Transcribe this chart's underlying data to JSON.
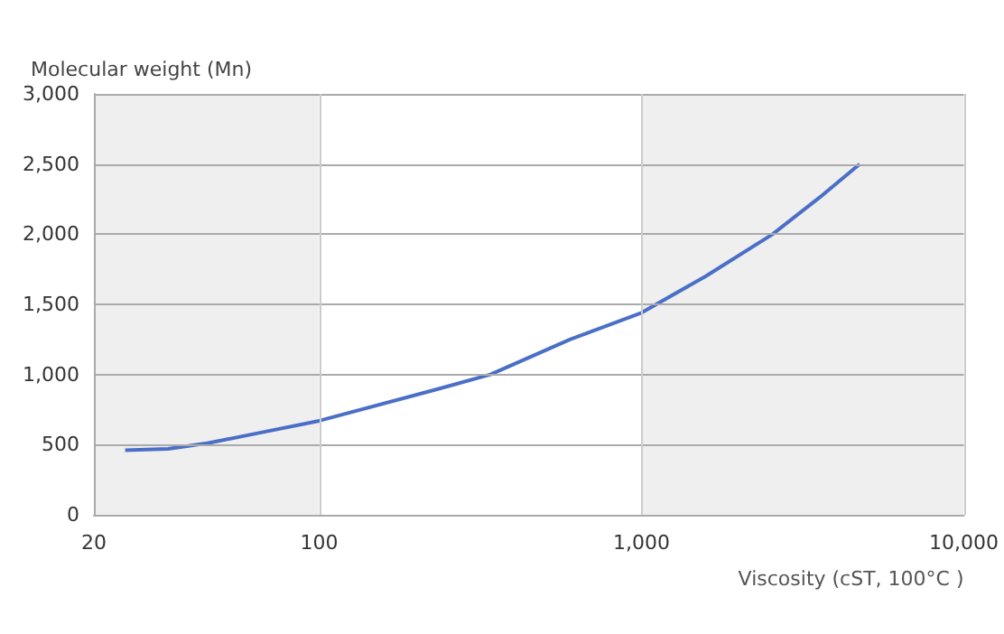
{
  "chart_data": {
    "type": "line",
    "xlabel": "Viscosity (cST, 100°C )",
    "ylabel": "Molecular weight (Mn)",
    "x": [
      25,
      34,
      45,
      64,
      100,
      220,
      340,
      600,
      1000,
      1580,
      2550,
      3560,
      4750
    ],
    "series": [
      {
        "color": "#4a6fc7",
        "values": [
          460,
          470,
          510,
          580,
          670,
          880,
          1000,
          1250,
          1440,
          1700,
          2000,
          2260,
          2500
        ]
      }
    ],
    "xlim": [
      20,
      10000
    ],
    "xticks": [
      20,
      100,
      {
        "value": 1000,
        "label": "1,000"
      },
      {
        "value": 10000,
        "label": "10,000"
      }
    ],
    "ylim": [
      0,
      3000
    ],
    "yticks": [
      0,
      500,
      {
        "value": 1000,
        "label": "1,000"
      },
      {
        "value": 1500,
        "label": "1,500"
      },
      {
        "value": 2000,
        "label": "2,000"
      },
      {
        "value": 2500,
        "label": "2,500"
      },
      {
        "value": 3000,
        "label": "3,000"
      }
    ],
    "log": "x",
    "grid": true,
    "marker": "none",
    "line_style": "solid",
    "bands": [
      {
        "axis": "x",
        "from": 20,
        "to": 100,
        "color": "#efefef"
      },
      {
        "axis": "x",
        "from": 1000,
        "to": 10000,
        "color": "#efefef"
      }
    ]
  }
}
